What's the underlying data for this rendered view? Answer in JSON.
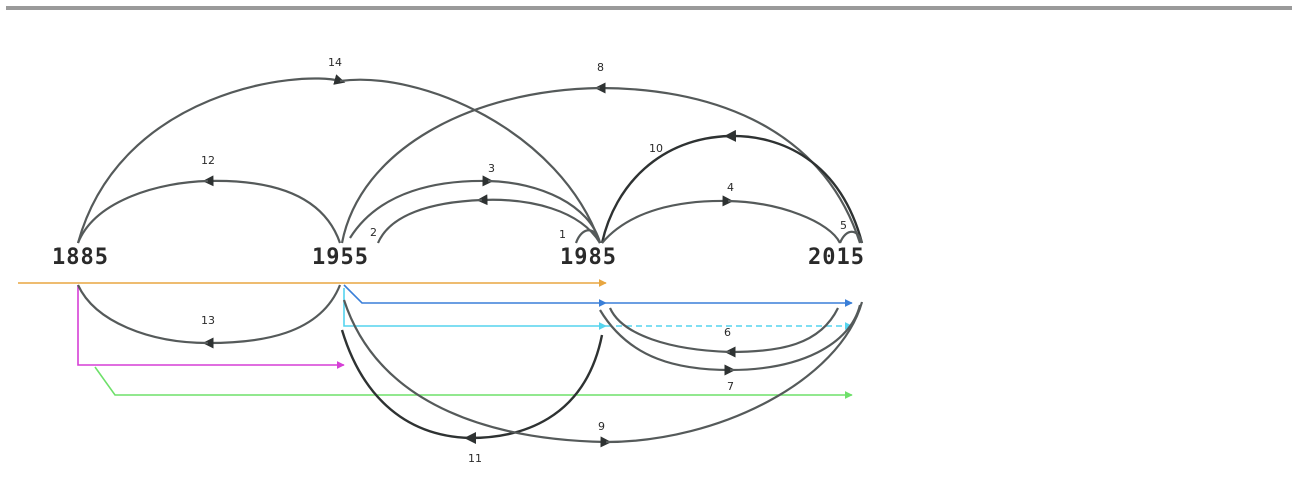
{
  "years": [
    "1885",
    "1955",
    "1985",
    "2015"
  ],
  "arc_labels": [
    "1",
    "2",
    "3",
    "4",
    "5",
    "6",
    "7",
    "8",
    "9",
    "10",
    "11",
    "12",
    "13",
    "14"
  ],
  "colors": {
    "orange": "#e8a640",
    "blue": "#3a7fd8",
    "cyan": "#55d4ee",
    "magenta": "#d63fd6",
    "green": "#6ee06a",
    "arc": "#555a5a",
    "top_bar": "#9a9a9a"
  }
}
